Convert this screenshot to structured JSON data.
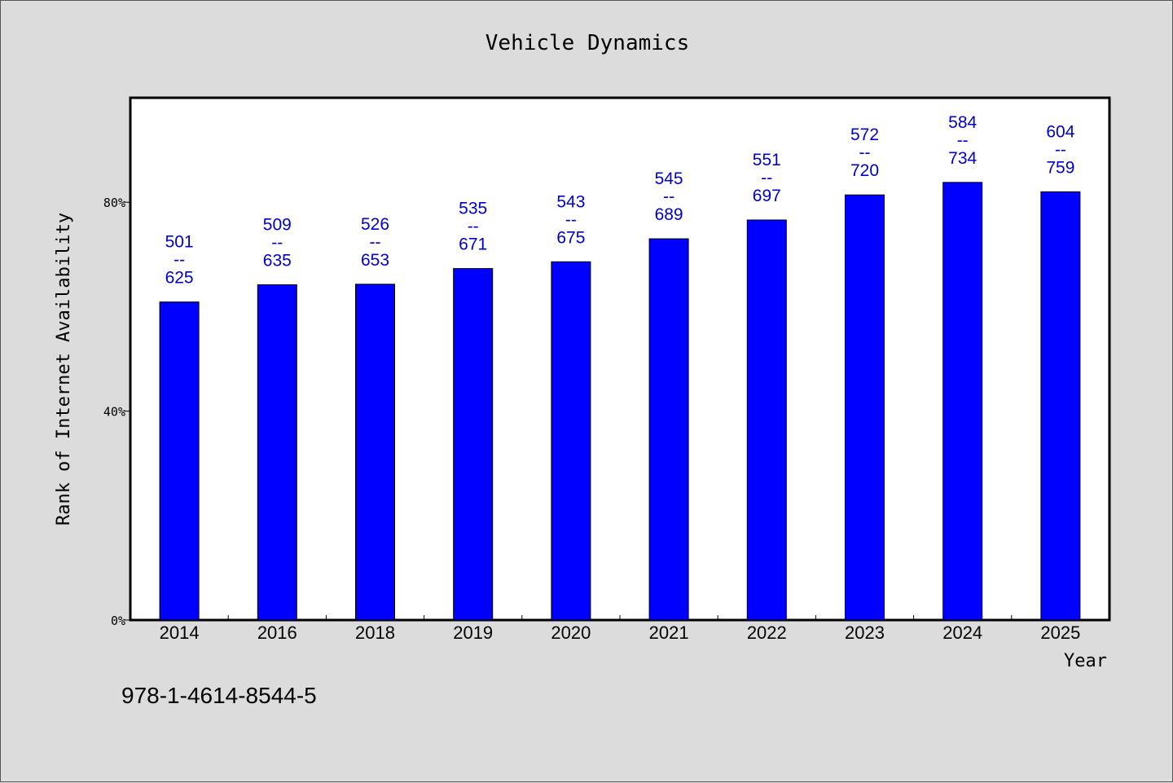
{
  "chart_data": {
    "type": "bar",
    "title": "Vehicle Dynamics",
    "xlabel": "Year",
    "ylabel": "Rank of Internet Availability",
    "categories": [
      "2014",
      "2016",
      "2018",
      "2019",
      "2020",
      "2021",
      "2022",
      "2023",
      "2024",
      "2025"
    ],
    "values": [
      60.9,
      64.2,
      64.3,
      67.3,
      68.6,
      73.0,
      76.6,
      81.4,
      83.8,
      82.0
    ],
    "value_unit": "%",
    "ylim": [
      0,
      100
    ],
    "yticks": [
      0,
      40,
      80
    ],
    "ytick_labels": [
      "0%",
      "40%",
      "80%"
    ],
    "data_labels": [
      {
        "low": "501",
        "sep": "--",
        "high": "625"
      },
      {
        "low": "509",
        "sep": "--",
        "high": "635"
      },
      {
        "low": "526",
        "sep": "--",
        "high": "653"
      },
      {
        "low": "535",
        "sep": "--",
        "high": "671"
      },
      {
        "low": "543",
        "sep": "--",
        "high": "675"
      },
      {
        "low": "545",
        "sep": "--",
        "high": "689"
      },
      {
        "low": "551",
        "sep": "--",
        "high": "697"
      },
      {
        "low": "572",
        "sep": "--",
        "high": "720"
      },
      {
        "low": "584",
        "sep": "--",
        "high": "734"
      },
      {
        "low": "604",
        "sep": "--",
        "high": "759"
      }
    ],
    "grid": false,
    "legend": "none",
    "colors": {
      "bar": "#0000ff",
      "bar_outline": "#000000",
      "data_label": "#0000cc",
      "plot_bg": "#ffffff",
      "figure_bg": "#dcdcdc"
    }
  },
  "footer": {
    "isbn": "978-1-4614-8544-5"
  }
}
